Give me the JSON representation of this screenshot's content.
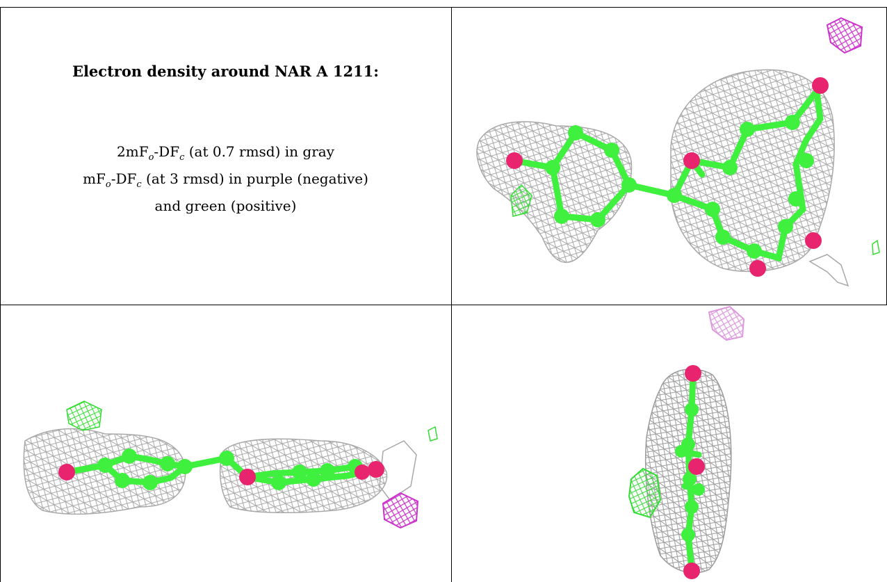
{
  "caption": {
    "title": "Electron density around NAR A 1211:",
    "line1_prefix": "2mF",
    "sub_o": "o",
    "line_mid": "-DF",
    "sub_c": "c",
    "line1_suffix": " (at 0.7 rmsd) in gray",
    "line2_prefix": "mF",
    "line2_suffix": " (at 3 rmsd) in purple (negative)",
    "line3": "and green (positive)"
  },
  "colors": {
    "density_2fofc": "#a8a8a8",
    "negative_map": "#cc33cc",
    "positive_map": "#33dd33",
    "carbon": "#3ff03f",
    "oxygen": "#e8246e"
  },
  "panels": [
    {
      "view": "front"
    },
    {
      "view": "side"
    },
    {
      "view": "end-on"
    }
  ]
}
